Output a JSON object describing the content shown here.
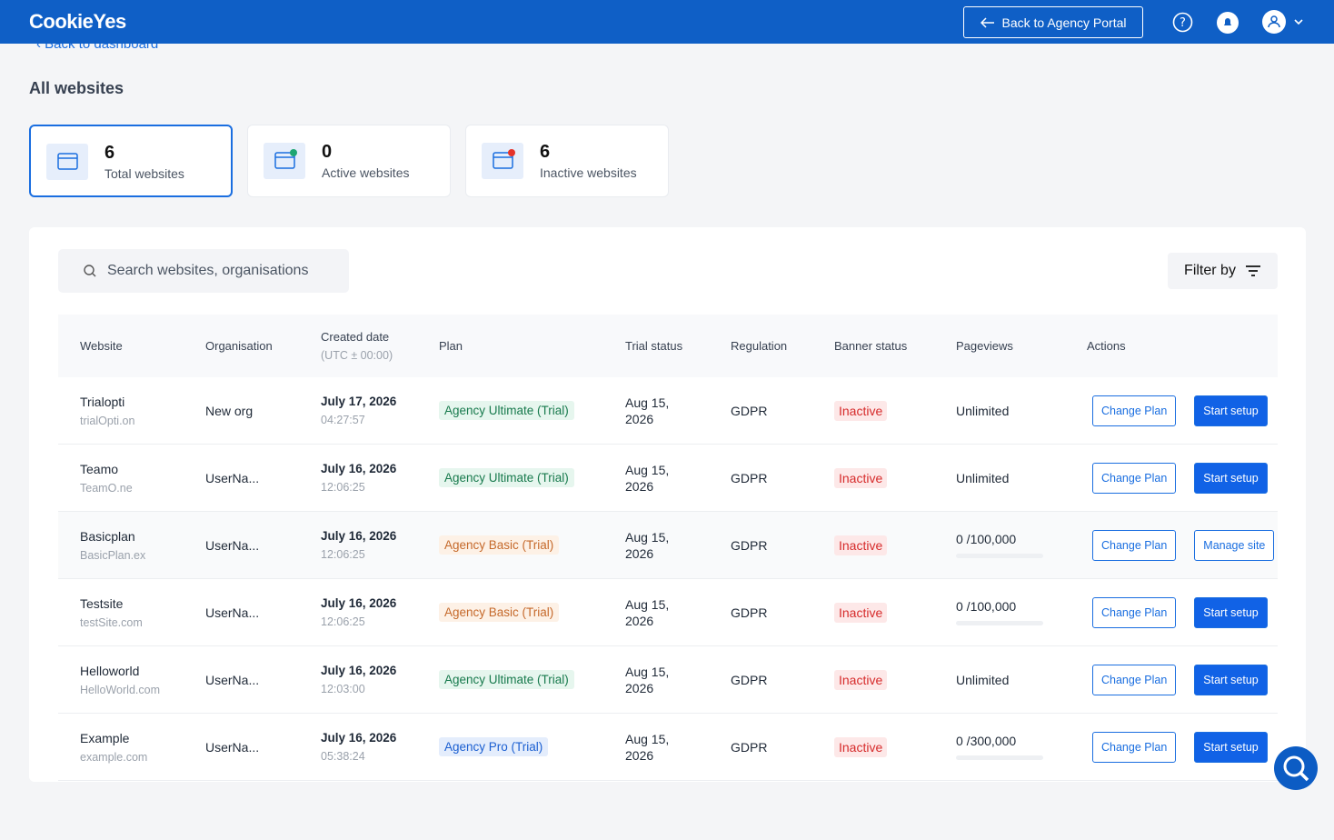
{
  "header": {
    "logo": "CookieYes",
    "back_portal": "Back to Agency Portal"
  },
  "breadcrumb": "Back to dashboard",
  "page_title": "All websites",
  "stats": [
    {
      "value": 6,
      "label": "Total websites",
      "dot": null
    },
    {
      "value": 0,
      "label": "Active websites",
      "dot": "#1ea672"
    },
    {
      "value": 6,
      "label": "Inactive websites",
      "dot": "#e5332a"
    }
  ],
  "search_placeholder": "Search websites, organisations",
  "filter": "Filter by",
  "table": {
    "columns": [
      "Website",
      "Organisation",
      "Created date",
      "Plan",
      "Trial status",
      "Regulation",
      "Banner status",
      "Pageviews",
      "Actions"
    ],
    "created_note": "(UTC ± 00:00)",
    "rows": [
      {
        "name": "Trialopti",
        "domain": "trialOpti.on",
        "org": "New org",
        "date": "July 17, 2026",
        "time": "04:27:57",
        "plan": "Agency Ultimate (Trial)",
        "plan_color": "green",
        "trial": "Aug 15, 2026",
        "regulation": "GDPR",
        "banner": "Inactive",
        "pageviews": "Unlimited",
        "meter": null,
        "change": "Change Plan",
        "setup": "Start setup",
        "setup_style": "filled"
      },
      {
        "name": "Teamo",
        "domain": "TeamO.ne",
        "org": "UserNa...",
        "date": "July 16, 2026",
        "time": "12:06:25",
        "plan": "Agency Ultimate (Trial)",
        "plan_color": "green",
        "trial": "Aug 15, 2026",
        "regulation": "GDPR",
        "banner": "Inactive",
        "pageviews": "Unlimited",
        "meter": null,
        "change": "Change Plan",
        "setup": "Start setup",
        "setup_style": "filled"
      },
      {
        "name": "Basicplan",
        "domain": "BasicPlan.ex",
        "org": "UserNa...",
        "date": "July 16, 2026",
        "time": "12:06:25",
        "plan": "Agency Basic (Trial)",
        "plan_color": "orange",
        "trial": "Aug 15, 2026",
        "regulation": "GDPR",
        "banner": "Inactive",
        "pageviews": "0 /100,000",
        "meter": 0,
        "change": "Change Plan",
        "setup": "Manage site",
        "setup_style": "outline"
      },
      {
        "name": "Testsite",
        "domain": "testSite.com",
        "org": "UserNa...",
        "date": "July 16, 2026",
        "time": "12:06:25",
        "plan": "Agency Basic (Trial)",
        "plan_color": "orange",
        "trial": "Aug 15, 2026",
        "regulation": "GDPR",
        "banner": "Inactive",
        "pageviews": "0 /100,000",
        "meter": 0,
        "change": "Change Plan",
        "setup": "Start setup",
        "setup_style": "filled"
      },
      {
        "name": "Helloworld",
        "domain": "HelloWorld.com",
        "org": "UserNa...",
        "date": "July 16, 2026",
        "time": "12:03:00",
        "plan": "Agency Ultimate (Trial)",
        "plan_color": "green",
        "trial": "Aug 15, 2026",
        "regulation": "GDPR",
        "banner": "Inactive",
        "pageviews": "Unlimited",
        "meter": null,
        "change": "Change Plan",
        "setup": "Start setup",
        "setup_style": "filled"
      },
      {
        "name": "Example",
        "domain": "example.com",
        "org": "UserNa...",
        "date": "July 16, 2026",
        "time": "05:38:24",
        "plan": "Agency Pro (Trial)",
        "plan_color": "blue",
        "trial": "Aug 15, 2026",
        "regulation": "GDPR",
        "banner": "Inactive",
        "pageviews": "0 /300,000",
        "meter": 0,
        "change": "Change Plan",
        "setup": "Start setup",
        "setup_style": "filled"
      }
    ]
  }
}
